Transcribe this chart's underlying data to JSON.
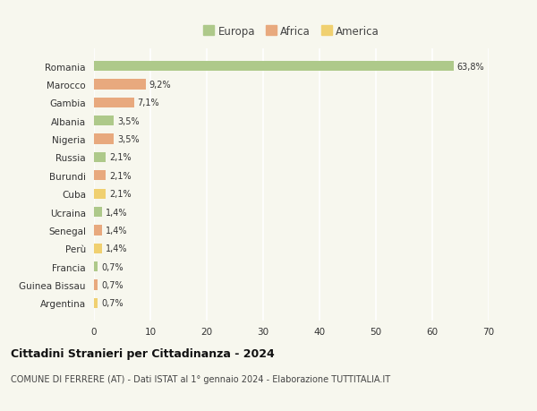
{
  "countries": [
    "Romania",
    "Marocco",
    "Gambia",
    "Albania",
    "Nigeria",
    "Russia",
    "Burundi",
    "Cuba",
    "Ucraina",
    "Senegal",
    "Perù",
    "Francia",
    "Guinea Bissau",
    "Argentina"
  ],
  "values": [
    63.8,
    9.2,
    7.1,
    3.5,
    3.5,
    2.1,
    2.1,
    2.1,
    1.4,
    1.4,
    1.4,
    0.7,
    0.7,
    0.7
  ],
  "labels": [
    "63,8%",
    "9,2%",
    "7,1%",
    "3,5%",
    "3,5%",
    "2,1%",
    "2,1%",
    "2,1%",
    "1,4%",
    "1,4%",
    "1,4%",
    "0,7%",
    "0,7%",
    "0,7%"
  ],
  "continent": [
    "Europa",
    "Africa",
    "Africa",
    "Europa",
    "Africa",
    "Europa",
    "Africa",
    "America",
    "Europa",
    "Africa",
    "America",
    "Europa",
    "Africa",
    "America"
  ],
  "colors": {
    "Europa": "#aec98a",
    "Africa": "#e8a97e",
    "America": "#f0d070"
  },
  "xlim": [
    0,
    70
  ],
  "xticks": [
    0,
    10,
    20,
    30,
    40,
    50,
    60,
    70
  ],
  "bg_color": "#f7f7ee",
  "title": "Cittadini Stranieri per Cittadinanza - 2024",
  "subtitle": "COMUNE DI FERRERE (AT) - Dati ISTAT al 1° gennaio 2024 - Elaborazione TUTTITALIA.IT",
  "legend_items": [
    "Europa",
    "Africa",
    "America"
  ]
}
